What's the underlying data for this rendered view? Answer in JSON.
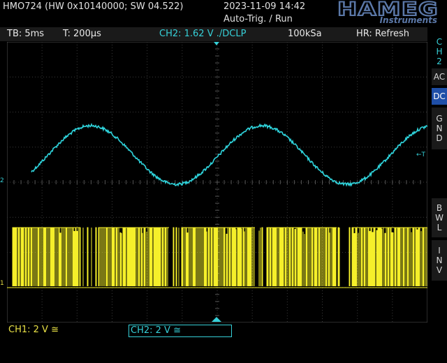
{
  "header": {
    "title": "HMO724 (HW 0x10140000; SW 04.522)",
    "datetime": "2023-11-09 14:42",
    "trigger_mode": "Auto-Trig. / Run",
    "logo_text": "HAMEG",
    "logo_sub": "Instruments"
  },
  "status": {
    "timebase": "TB: 5ms",
    "trigger_time": "T: 200µs",
    "ch2": "CH2: 1.62 V ./DCLP",
    "sample_rate": "100kSa",
    "hr_mode": "HR: Refresh"
  },
  "softkeys": {
    "channel": [
      "C",
      "H",
      "2"
    ],
    "ac": "AC",
    "dc": "DC",
    "gnd": [
      "G",
      "N",
      "D"
    ],
    "bwl": [
      "B",
      "W",
      "L"
    ],
    "inv": [
      "I",
      "N",
      "V"
    ]
  },
  "bottom": {
    "ch1_scale": "CH1: 2 V ≅",
    "ch2_scale": "CH2: 2 V ≅"
  },
  "markers": {
    "ch2_ground": "2",
    "ch1_ground": "1",
    "trigger_level": "←T"
  },
  "colors": {
    "ch1": "#f5ef2a",
    "ch2": "#2fd4dc",
    "grid": "#3a3a3a",
    "softkey_active": "#1f4fa8"
  },
  "chart_data": {
    "type": "line",
    "divisions_x": 12,
    "divisions_y": 8,
    "series": [
      {
        "name": "CH2",
        "description": "sine wave",
        "cycles_on_screen": 2.45,
        "amplitude_div": 1.7,
        "offset_div": 2.0
      },
      {
        "name": "CH1",
        "description": "PWM digital signal",
        "low_div": -1.0,
        "high_div": 0.75
      }
    ]
  }
}
